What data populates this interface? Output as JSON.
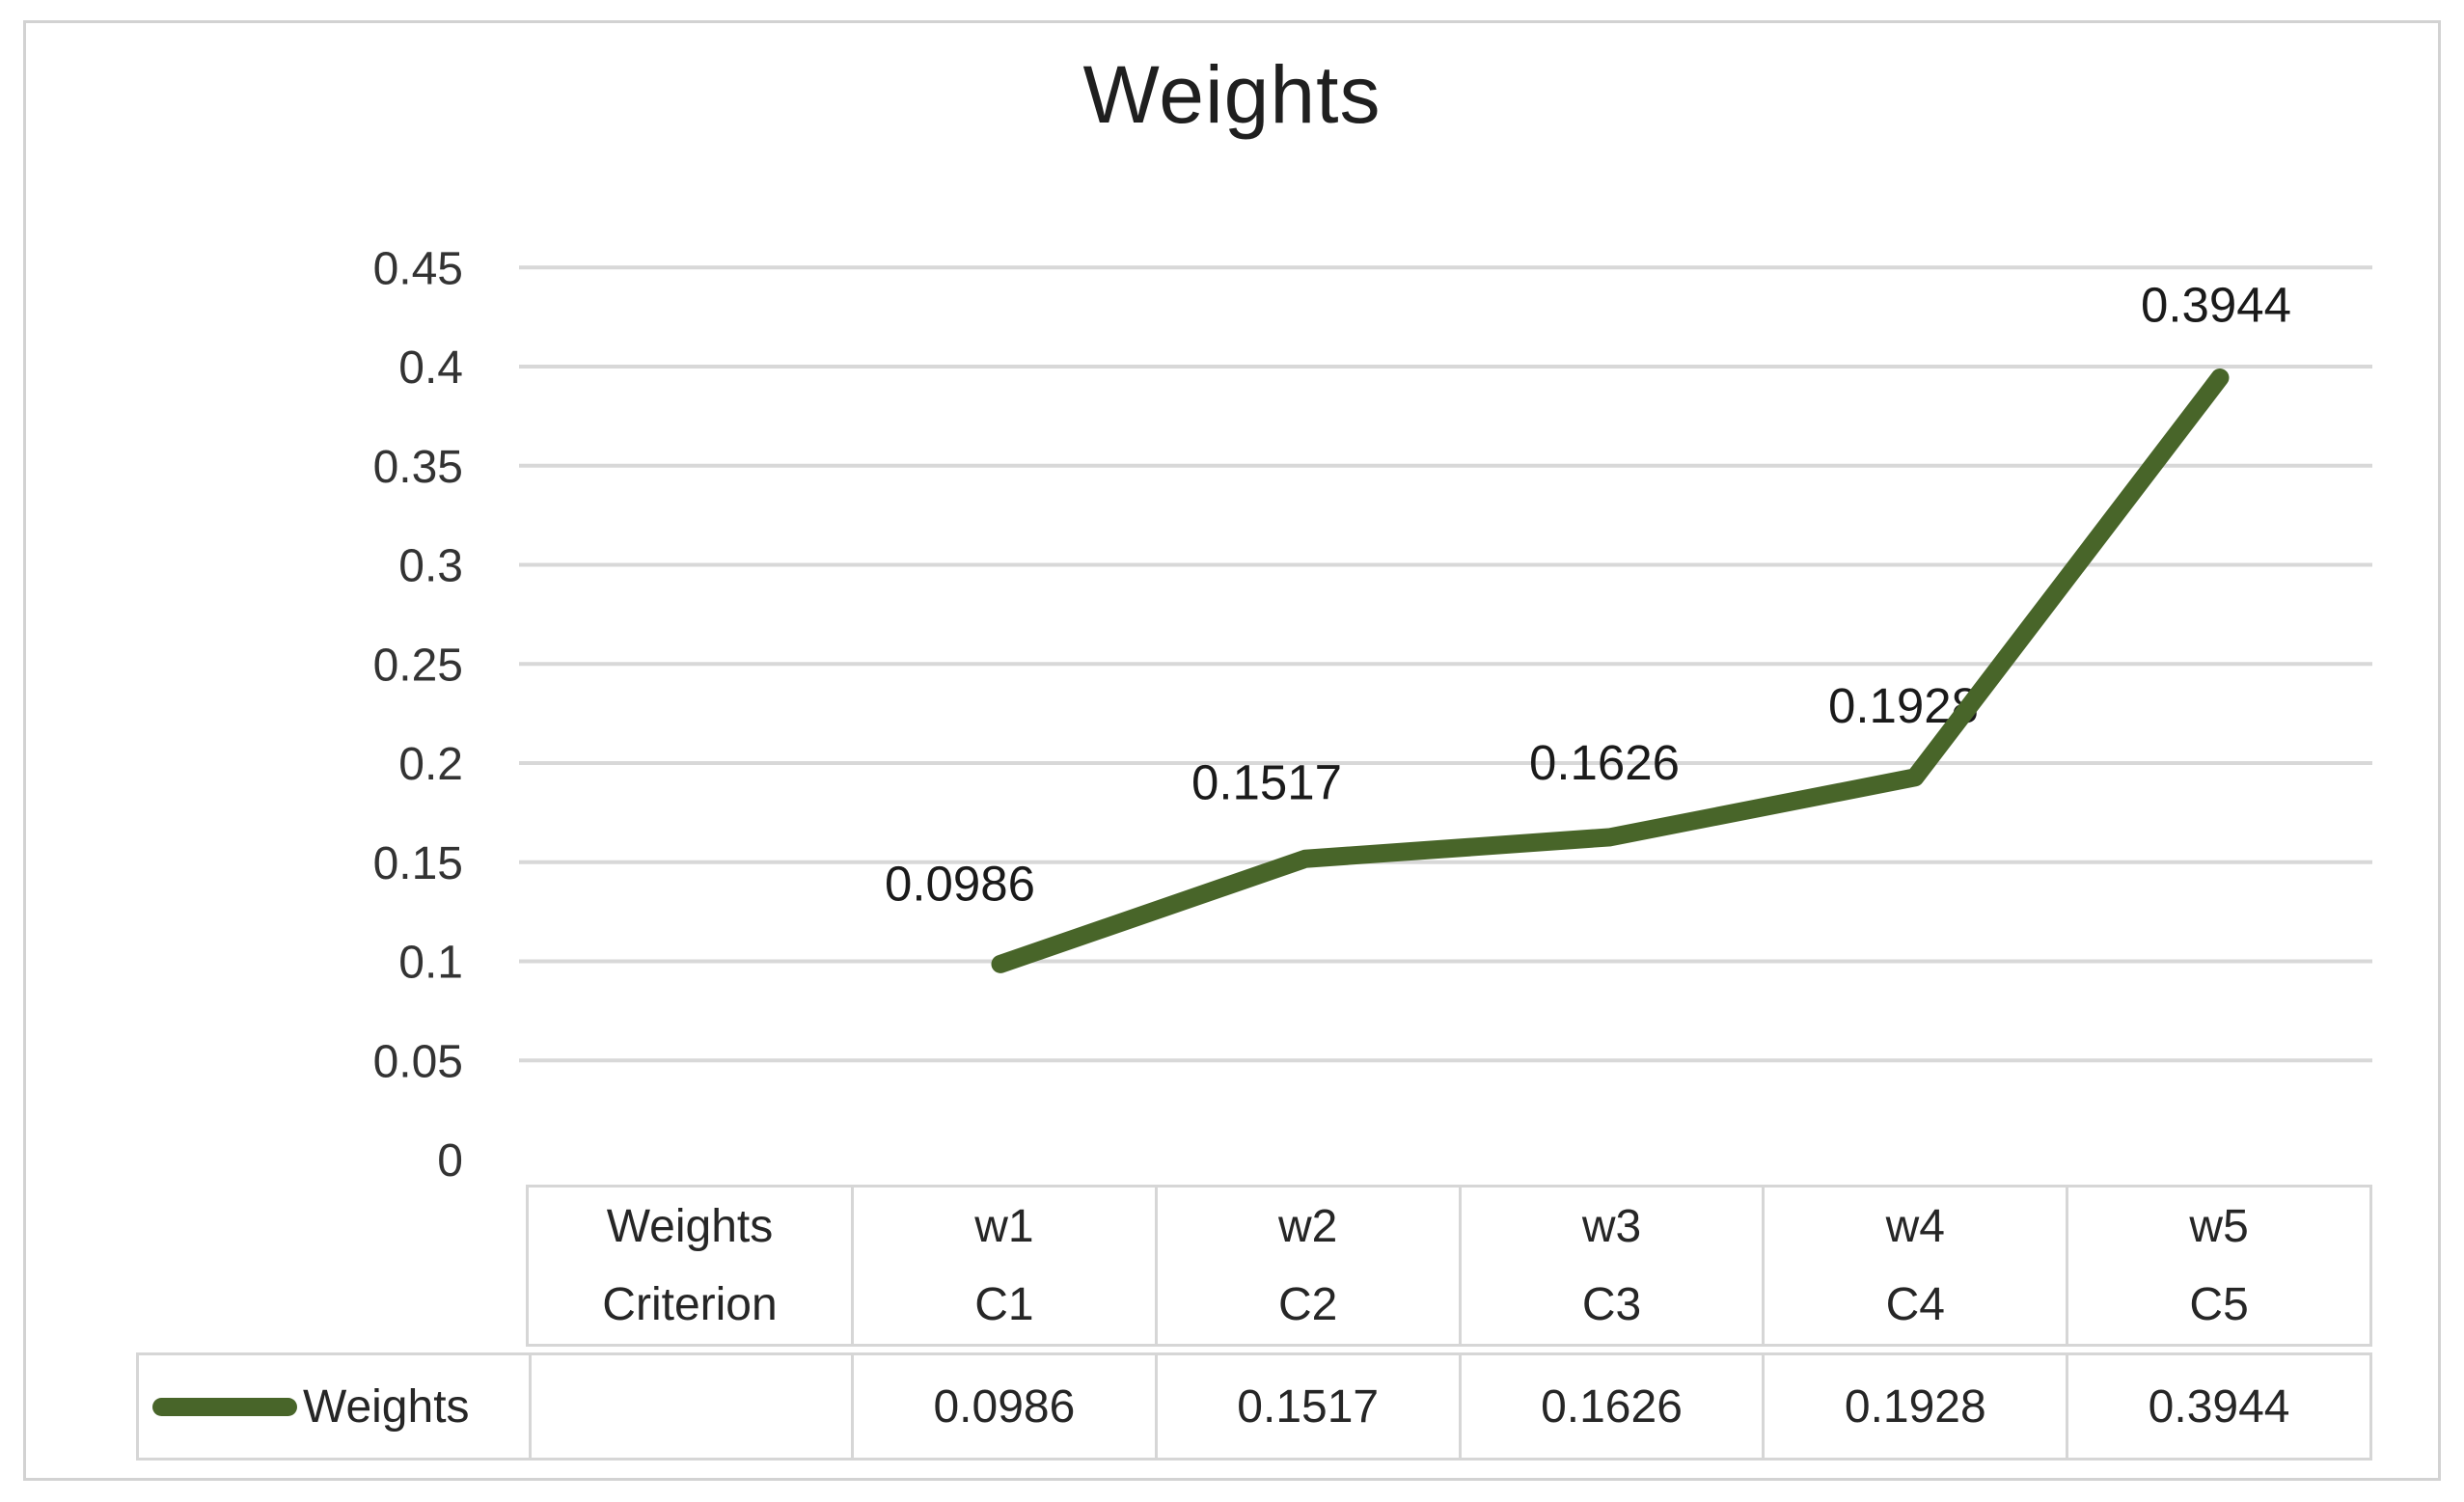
{
  "chart": {
    "title": "Weights",
    "colors": {
      "series": "#486529",
      "gridline": "#d8d8d8",
      "table_border": "#d6d6d6",
      "frame_border": "#d2d2d2",
      "text": "#262626",
      "data_label_text": "#1a1a1a",
      "axis_label_text": "#333333"
    }
  },
  "chart_data": {
    "type": "line",
    "title": "Weights",
    "categories": [
      "w1",
      "w2",
      "w3",
      "w4",
      "w5"
    ],
    "categories_level2": [
      "C1",
      "C2",
      "C3",
      "C4",
      "C5"
    ],
    "category_level_names": [
      "Weights",
      "Criterion"
    ],
    "series": [
      {
        "name": "Weights",
        "values": [
          0.0986,
          0.1517,
          0.1626,
          0.1928,
          0.3944
        ]
      }
    ],
    "data_labels": [
      "0.0986",
      "0.1517",
      "0.1626",
      "0.1928",
      "0.3944"
    ],
    "ylim": [
      0,
      0.45
    ],
    "y_ticks": [
      {
        "value": 0.45,
        "label": "0.45"
      },
      {
        "value": 0.4,
        "label": "0.4"
      },
      {
        "value": 0.35,
        "label": "0.35"
      },
      {
        "value": 0.3,
        "label": "0.3"
      },
      {
        "value": 0.25,
        "label": "0.25"
      },
      {
        "value": 0.2,
        "label": "0.2"
      },
      {
        "value": 0.15,
        "label": "0.15"
      },
      {
        "value": 0.1,
        "label": "0.1"
      },
      {
        "value": 0.05,
        "label": "0.05"
      },
      {
        "value": 0,
        "label": "0"
      }
    ],
    "grid": true,
    "legend_position": "data-table",
    "legend_label": "Weights"
  },
  "data_table": {
    "header_rows": [
      {
        "row_header": "Weights",
        "cells": [
          "w1",
          "w2",
          "w3",
          "w4",
          "w5"
        ]
      },
      {
        "row_header": "Criterion",
        "cells": [
          "C1",
          "C2",
          "C3",
          "C4",
          "C5"
        ]
      }
    ],
    "series_row": {
      "legend_label": "Weights",
      "row_header": "",
      "cells": [
        "0.0986",
        "0.1517",
        "0.1626",
        "0.1928",
        "0.3944"
      ]
    }
  }
}
